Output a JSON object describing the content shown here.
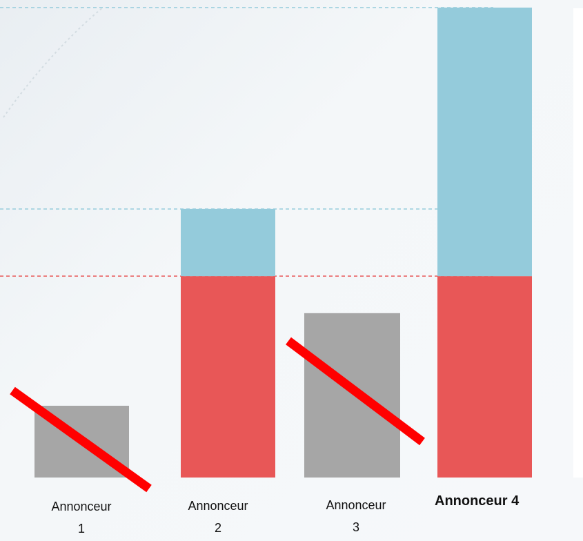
{
  "chart_data": {
    "type": "bar",
    "categories": [
      "Annonceur\n1",
      "Annonceur\n2",
      "Annonceur\n3",
      "Annonceur 4"
    ],
    "series": [
      {
        "color": "#a6a6a6",
        "values": [
          31,
          0,
          71,
          0
        ]
      },
      {
        "color": "#e85757",
        "values": [
          0,
          87,
          0,
          87
        ]
      },
      {
        "color": "#94cbdb",
        "values": [
          0,
          29,
          0,
          116
        ]
      }
    ],
    "eliminated": [
      true,
      false,
      true,
      false
    ],
    "highlight_index": 3,
    "reference_lines": [
      {
        "value": 203,
        "color": "#94cbdb"
      },
      {
        "value": 116,
        "color": "#94cbdb"
      },
      {
        "value": 87,
        "color": "#e85757"
      }
    ],
    "ylim": [
      0,
      203
    ],
    "grid": false,
    "strike_color": "#ff0000"
  },
  "labels": {
    "a1_line1": "Annonceur",
    "a1_line2": "1",
    "a2_line1": "Annonceur",
    "a2_line2": "2",
    "a3_line1": "Annonceur",
    "a3_line2": "3",
    "a4": "Annonceur 4"
  }
}
